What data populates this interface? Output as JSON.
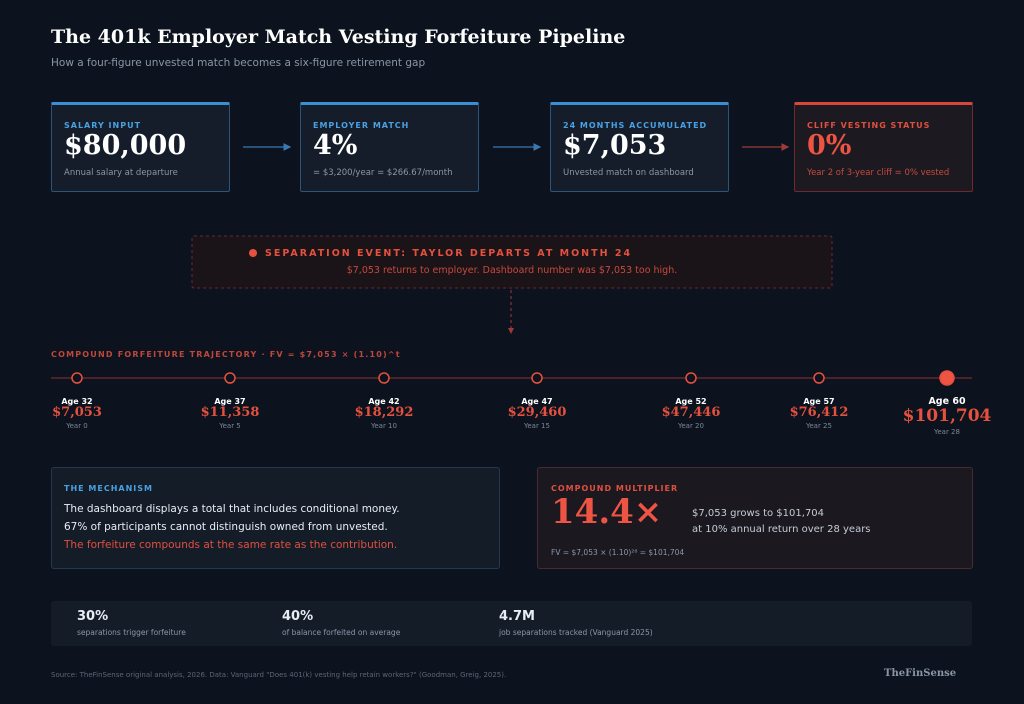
{
  "header": {
    "title": "The 401k Employer Match Vesting Forfeiture Pipeline",
    "subtitle": "How a four-figure unvested match becomes a six-figure retirement gap"
  },
  "steps": [
    {
      "label": "SALARY INPUT",
      "value": "$80,000",
      "note": "Annual salary at departure"
    },
    {
      "label": "EMPLOYER MATCH",
      "value": "4%",
      "note": "= $3,200/year = $266.67/month"
    },
    {
      "label": "24 MONTHS ACCUMULATED",
      "value": "$7,053",
      "note": "Unvested match on dashboard"
    },
    {
      "label": "CLIFF VESTING STATUS",
      "value": "0%",
      "note": "Year 2 of 3-year cliff = 0% vested"
    }
  ],
  "event": {
    "title": "SEPARATION EVENT: TAYLOR DEPARTS AT MONTH 24",
    "text": "$7,053 returns to employer. Dashboard number was $7,053 too high."
  },
  "trajectory": {
    "title": "COMPOUND FORFEITURE TRAJECTORY · FV = $7,053 × (1.10)^t",
    "points": [
      {
        "age": "Age 32",
        "amount": "$7,053",
        "year": "Year 0"
      },
      {
        "age": "Age 37",
        "amount": "$11,358",
        "year": "Year 5"
      },
      {
        "age": "Age 42",
        "amount": "$18,292",
        "year": "Year 10"
      },
      {
        "age": "Age 47",
        "amount": "$29,460",
        "year": "Year 15"
      },
      {
        "age": "Age 52",
        "amount": "$47,446",
        "year": "Year 20"
      },
      {
        "age": "Age 57",
        "amount": "$76,412",
        "year": "Year 25"
      },
      {
        "age": "Age 60",
        "amount": "$101,704",
        "year": "Year 28"
      }
    ]
  },
  "mechanism": {
    "title": "THE MECHANISM",
    "lines": [
      "The dashboard displays a total that includes conditional money.",
      "67% of participants cannot distinguish owned from unvested.",
      "The forfeiture compounds at the same rate as the contribution."
    ]
  },
  "multiplier": {
    "title": "COMPOUND MULTIPLIER",
    "value": "14.4×",
    "lines": [
      "$7,053 grows to $101,704",
      "at 10% annual return over 28 years"
    ],
    "formula": "FV = $7,053 × (1.10)²⁸ = $101,704"
  },
  "stats": [
    {
      "value": "30%",
      "label": "separations trigger forfeiture"
    },
    {
      "value": "40%",
      "label": "of balance forfeited on average"
    },
    {
      "value": "4.7M",
      "label": "job separations tracked (Vanguard 2025)"
    }
  ],
  "footer": {
    "source": "Source: TheFinSense original analysis, 2026. Data: Vanguard \"Does 401(k) vesting help retain workers?\" (Goodman, Greig, 2025).",
    "brand": "TheFinSense"
  }
}
